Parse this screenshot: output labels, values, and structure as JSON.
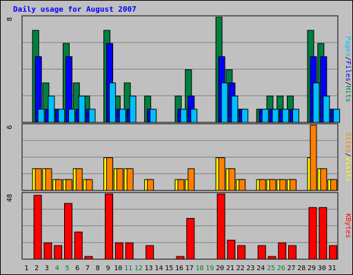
{
  "chart_data": {
    "type": "bar",
    "title": "Daily usage for August 2007",
    "colors": {
      "background": "#c0c0c0",
      "plot_bg": "#c0c0c0",
      "title": "#0000ff",
      "hits": "#008040",
      "files": "#0000ff",
      "pages": "#00c0ff",
      "visits": "#ffff00",
      "sites": "#ff8000",
      "kbytes": "#ff0000",
      "weekend_label": "#008040"
    },
    "x_labels": [
      "1",
      "2",
      "3",
      "4",
      "5",
      "6",
      "7",
      "8",
      "9",
      "10",
      "11",
      "12",
      "13",
      "14",
      "15",
      "16",
      "17",
      "18",
      "19",
      "20",
      "21",
      "22",
      "23",
      "24",
      "25",
      "26",
      "27",
      "28",
      "29",
      "30",
      "31"
    ],
    "weekend_days": [
      "4",
      "5",
      "11",
      "12",
      "18",
      "19",
      "25",
      "26"
    ],
    "panels": [
      {
        "name": "hits-files-pages",
        "ymax_label": "8",
        "ymax": 8,
        "legend": [
          {
            "text": "Pages",
            "color_key": "pages"
          },
          {
            "text": "Files",
            "color_key": "files"
          },
          {
            "text": "Hits",
            "color_key": "hits"
          }
        ],
        "series": [
          {
            "name": "Hits",
            "color_key": "hits",
            "values": [
              0,
              7,
              3,
              1,
              6,
              3,
              2,
              0,
              7,
              2,
              3,
              0,
              2,
              0,
              0,
              2,
              4,
              0,
              0,
              8,
              4,
              1,
              0,
              1,
              2,
              2,
              2,
              0,
              7,
              6,
              1
            ]
          },
          {
            "name": "Files",
            "color_key": "files",
            "values": [
              0,
              5,
              1,
              1,
              5,
              1,
              1,
              0,
              6,
              1,
              1,
              0,
              1,
              0,
              0,
              1,
              2,
              0,
              0,
              5,
              3,
              1,
              0,
              1,
              1,
              1,
              1,
              0,
              5,
              5,
              1
            ]
          },
          {
            "name": "Pages",
            "color_key": "pages",
            "values": [
              0,
              1,
              2,
              1,
              1,
              2,
              1,
              0,
              3,
              1,
              2,
              0,
              1,
              0,
              0,
              1,
              1,
              0,
              0,
              3,
              2,
              1,
              0,
              1,
              1,
              1,
              1,
              0,
              3,
              2,
              1
            ]
          }
        ]
      },
      {
        "name": "visits-sites",
        "ymax_label": "6",
        "ymax": 6,
        "legend": [
          {
            "text": "Sites",
            "color_key": "sites"
          },
          {
            "text": "Visits",
            "color_key": "visits"
          }
        ],
        "series": [
          {
            "name": "Visits",
            "color_key": "visits",
            "values": [
              0,
              2,
              2,
              1,
              1,
              2,
              1,
              0,
              3,
              2,
              2,
              0,
              1,
              0,
              0,
              1,
              1,
              0,
              0,
              3,
              2,
              1,
              0,
              1,
              1,
              1,
              1,
              0,
              3,
              2,
              1
            ]
          },
          {
            "name": "Sites",
            "color_key": "sites",
            "values": [
              0,
              2,
              2,
              1,
              1,
              2,
              1,
              0,
              3,
              2,
              2,
              0,
              1,
              0,
              0,
              1,
              2,
              0,
              0,
              3,
              2,
              1,
              0,
              1,
              1,
              1,
              1,
              0,
              6,
              2,
              1
            ]
          }
        ]
      },
      {
        "name": "kbytes",
        "ymax_label": "48",
        "ymax": 48,
        "legend": [
          {
            "text": "KBytes",
            "color_key": "kbytes"
          }
        ],
        "series": [
          {
            "name": "KBytes",
            "color_key": "kbytes",
            "values": [
              0,
              47,
              12,
              10,
              41,
              20,
              2,
              0,
              48,
              12,
              12,
              0,
              10,
              0,
              0,
              2,
              30,
              0,
              0,
              48,
              14,
              10,
              0,
              10,
              2,
              12,
              10,
              0,
              38,
              38,
              10
            ]
          }
        ]
      }
    ]
  }
}
